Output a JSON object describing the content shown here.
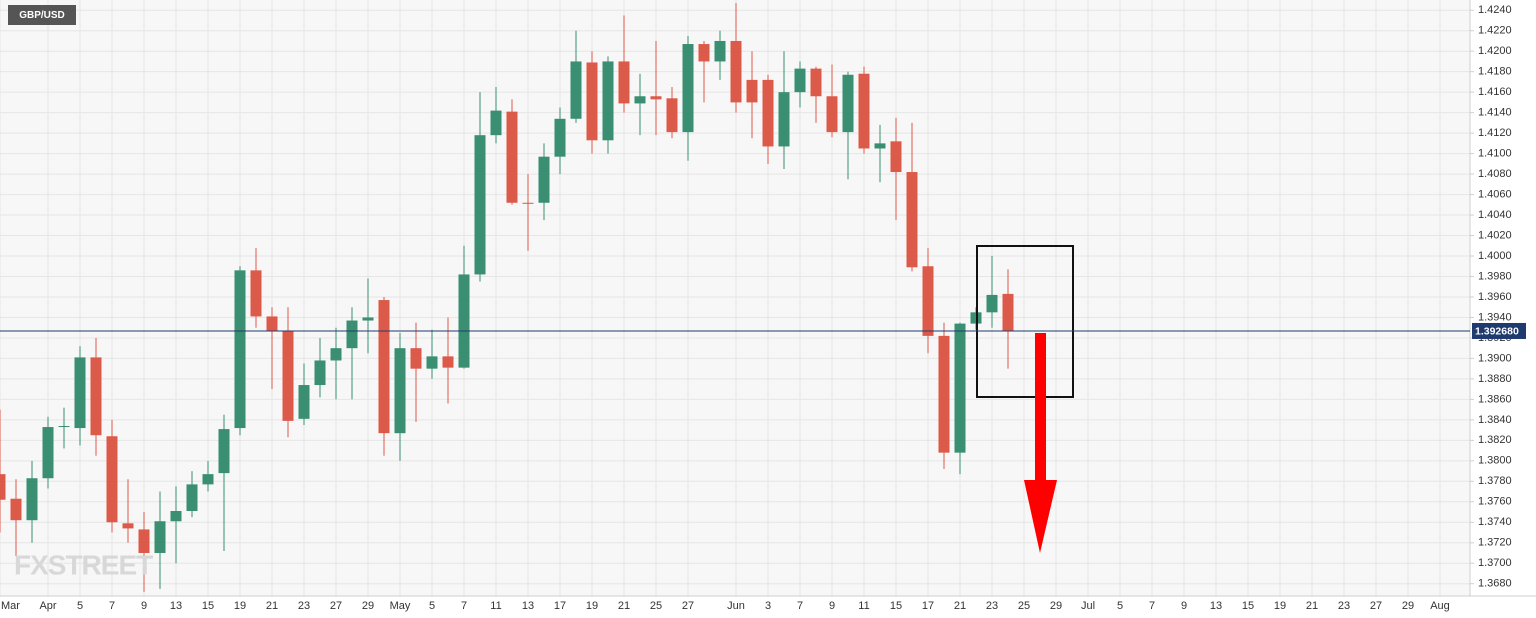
{
  "chart_data": {
    "type": "candlestick",
    "title": "GBP/USD",
    "watermark": "FXSTREET",
    "categories": [
      "Mar",
      null,
      null,
      "Apr",
      null,
      "5",
      null,
      "7",
      null,
      "9",
      null,
      "13",
      null,
      "15",
      null,
      "19",
      null,
      "21",
      null,
      "23",
      null,
      "27",
      null,
      "29",
      null,
      "May",
      null,
      "5",
      null,
      "7",
      null,
      "11",
      null,
      "13",
      null,
      "17",
      null,
      "19",
      null,
      "21",
      null,
      "25",
      null,
      "27",
      null,
      null,
      "Jun",
      null,
      "3",
      null,
      "7",
      null,
      "9",
      null,
      "11",
      null,
      "15",
      null,
      "17",
      null,
      "21",
      null,
      "23",
      null,
      "25",
      null,
      "29",
      null,
      "Jul",
      null,
      "5",
      null,
      "7",
      null,
      "9",
      null,
      "13",
      null,
      "15",
      null,
      "19",
      null,
      "21",
      null,
      "23",
      null,
      "27",
      null,
      "29",
      null,
      "Aug"
    ],
    "open": [
      1.3787,
      1.3763,
      1.3742,
      1.3783,
      1.3833,
      1.3832,
      1.3901,
      1.3824,
      1.3739,
      1.3733,
      1.371,
      1.3741,
      1.3751,
      1.3777,
      1.3788,
      1.3832,
      1.3986,
      1.3941,
      1.3927,
      1.3841,
      1.3874,
      1.3898,
      1.391,
      1.3937,
      1.3957,
      1.3827,
      1.391,
      1.389,
      1.3902,
      1.3891,
      1.3982,
      1.4118,
      1.4141,
      1.4052,
      1.4052,
      1.4097,
      1.4134,
      1.4189,
      1.4113,
      1.419,
      1.4149,
      1.4156,
      1.4154,
      1.4121,
      1.4207,
      1.419,
      1.421,
      1.4172,
      1.4172,
      1.4107,
      1.416,
      1.4183,
      1.4156,
      1.4121,
      1.4178,
      1.4105,
      1.4112,
      1.4082,
      1.399,
      1.3922,
      1.3808,
      1.3934,
      1.3945,
      1.3963,
      null,
      null,
      null,
      null,
      null,
      null,
      null,
      null,
      null,
      null,
      null,
      null,
      null,
      null,
      null,
      null,
      null,
      null,
      null,
      null,
      null,
      null,
      null,
      null,
      null,
      null,
      null
    ],
    "high": [
      1.385,
      1.3782,
      1.38,
      1.3843,
      1.3852,
      1.3912,
      1.392,
      1.384,
      1.3782,
      1.375,
      1.377,
      1.3775,
      1.379,
      1.38,
      1.3845,
      1.399,
      1.4008,
      1.395,
      1.395,
      1.3895,
      1.392,
      1.393,
      1.395,
      1.3978,
      1.396,
      1.3925,
      1.3935,
      1.3928,
      1.394,
      1.401,
      1.416,
      1.4165,
      1.4153,
      1.408,
      1.411,
      1.4145,
      1.422,
      1.42,
      1.4195,
      1.4235,
      1.4178,
      1.421,
      1.4165,
      1.4215,
      1.421,
      1.422,
      1.4247,
      1.42,
      1.4177,
      1.42,
      1.419,
      1.4185,
      1.4187,
      1.418,
      1.4185,
      1.4128,
      1.4135,
      1.413,
      1.4008,
      1.3935,
      1.3935,
      1.395,
      1.4,
      1.3987,
      null,
      null,
      null,
      null,
      null,
      null,
      null,
      null,
      null,
      null,
      null,
      null,
      null,
      null,
      null,
      null,
      null,
      null,
      null,
      null,
      null,
      null,
      null,
      null,
      null,
      null,
      null
    ],
    "low": [
      1.373,
      1.3707,
      1.372,
      1.3773,
      1.3812,
      1.3815,
      1.3805,
      1.373,
      1.372,
      1.3672,
      1.3675,
      1.37,
      1.3745,
      1.377,
      1.3712,
      1.3825,
      1.393,
      1.387,
      1.3823,
      1.3835,
      1.3862,
      1.386,
      1.386,
      1.3905,
      1.3805,
      1.38,
      1.3838,
      1.388,
      1.3856,
      1.389,
      1.3975,
      1.411,
      1.405,
      1.4005,
      1.4035,
      1.408,
      1.413,
      1.41,
      1.41,
      1.414,
      1.4118,
      1.4118,
      1.4115,
      1.4093,
      1.415,
      1.4172,
      1.414,
      1.4115,
      1.409,
      1.4085,
      1.4145,
      1.413,
      1.4116,
      1.4075,
      1.41,
      1.4072,
      1.4035,
      1.3985,
      1.3905,
      1.3792,
      1.3787,
      1.3928,
      1.393,
      1.389,
      null,
      null,
      null,
      null,
      null,
      null,
      null,
      null,
      null,
      null,
      null,
      null,
      null,
      null,
      null,
      null,
      null,
      null,
      null,
      null,
      null,
      null,
      null,
      null,
      null,
      null,
      null
    ],
    "close": [
      1.3762,
      1.3742,
      1.3783,
      1.3833,
      1.3834,
      1.3901,
      1.3825,
      1.374,
      1.3734,
      1.371,
      1.3741,
      1.3751,
      1.3777,
      1.3787,
      1.3831,
      1.3986,
      1.3941,
      1.3927,
      1.3839,
      1.3874,
      1.3898,
      1.391,
      1.3937,
      1.394,
      1.3827,
      1.391,
      1.389,
      1.3902,
      1.3891,
      1.3982,
      1.4118,
      1.4142,
      1.4052,
      1.4051,
      1.4097,
      1.4134,
      1.419,
      1.4113,
      1.419,
      1.4149,
      1.4156,
      1.4153,
      1.4121,
      1.4207,
      1.419,
      1.421,
      1.415,
      1.415,
      1.4107,
      1.416,
      1.4183,
      1.4156,
      1.4121,
      1.4177,
      1.4105,
      1.411,
      1.4082,
      1.3989,
      1.3922,
      1.3808,
      1.3934,
      1.3945,
      1.3962,
      1.3927,
      null,
      null,
      null,
      null,
      null,
      null,
      null,
      null,
      null,
      null,
      null,
      null,
      null,
      null,
      null,
      null,
      null,
      null,
      null,
      null,
      null,
      null,
      null,
      null,
      null,
      null,
      null
    ],
    "up_color": "#3a8f72",
    "down_color": "#dc5a4a",
    "ylim": [
      1.3668,
      1.425
    ],
    "yticks": [
      {
        "value": 1.368,
        "label": "1.3680"
      },
      {
        "value": 1.37,
        "label": "1.3700"
      },
      {
        "value": 1.372,
        "label": "1.3720"
      },
      {
        "value": 1.374,
        "label": "1.3740"
      },
      {
        "value": 1.376,
        "label": "1.3760"
      },
      {
        "value": 1.378,
        "label": "1.3780"
      },
      {
        "value": 1.38,
        "label": "1.3800"
      },
      {
        "value": 1.382,
        "label": "1.3820"
      },
      {
        "value": 1.384,
        "label": "1.3840"
      },
      {
        "value": 1.386,
        "label": "1.3860"
      },
      {
        "value": 1.388,
        "label": "1.3880"
      },
      {
        "value": 1.39,
        "label": "1.3900"
      },
      {
        "value": 1.392,
        "label": "1.3920"
      },
      {
        "value": 1.394,
        "label": "1.3940"
      },
      {
        "value": 1.396,
        "label": "1.3960"
      },
      {
        "value": 1.398,
        "label": "1.3980"
      },
      {
        "value": 1.4,
        "label": "1.4000"
      },
      {
        "value": 1.402,
        "label": "1.4020"
      },
      {
        "value": 1.404,
        "label": "1.4040"
      },
      {
        "value": 1.406,
        "label": "1.4060"
      },
      {
        "value": 1.408,
        "label": "1.4080"
      },
      {
        "value": 1.41,
        "label": "1.4100"
      },
      {
        "value": 1.412,
        "label": "1.4120"
      },
      {
        "value": 1.414,
        "label": "1.4140"
      },
      {
        "value": 1.416,
        "label": "1.4160"
      },
      {
        "value": 1.418,
        "label": "1.4180"
      },
      {
        "value": 1.42,
        "label": "1.4200"
      },
      {
        "value": 1.422,
        "label": "1.4220"
      },
      {
        "value": 1.424,
        "label": "1.4240"
      }
    ],
    "price_line": {
      "value": 1.39268,
      "label": "1.392680",
      "color": "#1f3a6e"
    },
    "grid": true
  }
}
